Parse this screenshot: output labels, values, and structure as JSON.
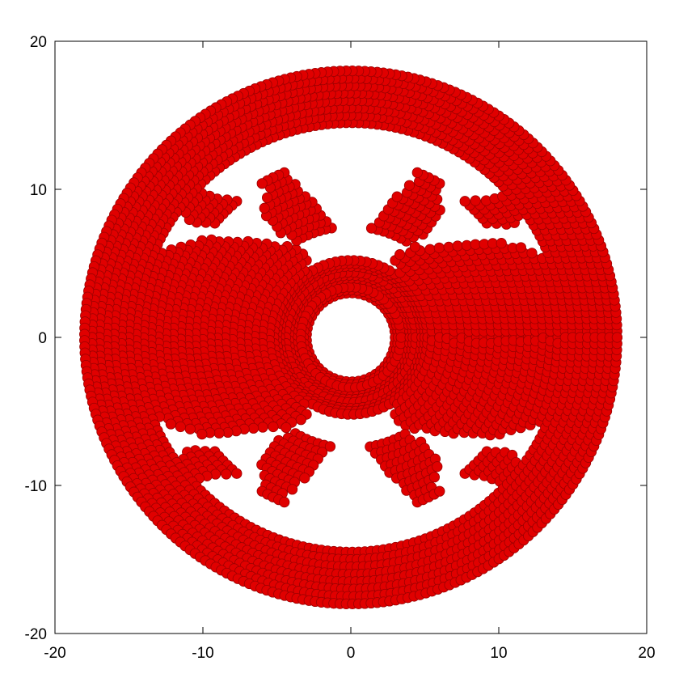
{
  "chart_data": {
    "type": "scatter",
    "title": "",
    "xlabel": "",
    "ylabel": "",
    "xlim": [
      -20,
      20
    ],
    "ylim": [
      -20,
      20
    ],
    "x_ticks": [
      -20,
      -10,
      0,
      10,
      20
    ],
    "y_ticks": [
      -20,
      -10,
      0,
      10,
      20
    ],
    "x_tick_labels": [
      "-20",
      "-10",
      "0",
      "10",
      "20"
    ],
    "y_tick_labels": [
      "-20",
      "-10",
      "0",
      "10",
      "20"
    ],
    "grid": false,
    "legend": "none",
    "marker": "filled circle",
    "marker_color": "#e00000",
    "marker_edge_color": "#9a0000",
    "description_of_pattern": "",
    "series": [
      {
        "rings": [
          {
            "r": 3.0,
            "arcs": [
              [
                0,
                360
              ]
            ]
          },
          {
            "r": 3.2,
            "arcs": [
              [
                0,
                360
              ]
            ]
          },
          {
            "r": 3.4,
            "arcs": [
              [
                0,
                360
              ]
            ]
          },
          {
            "r": 4.0,
            "arcs": [
              [
                0,
                360
              ]
            ]
          },
          {
            "r": 4.2,
            "arcs": [
              [
                0,
                360
              ]
            ]
          },
          {
            "r": 4.4,
            "arcs": [
              [
                0,
                360
              ]
            ]
          },
          {
            "r": 4.8,
            "arcs": [
              [
                0,
                360
              ]
            ]
          },
          {
            "r": 5.0,
            "arcs": [
              [
                0,
                360
              ]
            ]
          },
          {
            "r": 5.2,
            "arcs": [
              [
                0,
                360
              ]
            ]
          },
          {
            "r": 5.5,
            "arcs": [
              [
                0,
                55
              ],
              [
                125,
                235
              ],
              [
                305,
                360
              ]
            ]
          },
          {
            "r": 6.0,
            "arcs": [
              [
                0,
                60
              ],
              [
                120,
                240
              ],
              [
                300,
                360
              ]
            ]
          },
          {
            "r": 6.5,
            "arcs": [
              [
                0,
                60
              ],
              [
                120,
                240
              ],
              [
                300,
                360
              ]
            ]
          },
          {
            "r": 7.0,
            "arcs": [
              [
                0,
                58
              ],
              [
                122,
                238
              ],
              [
                302,
                360
              ]
            ]
          },
          {
            "r": 7.5,
            "arcs": [
              [
                0,
                55
              ],
              [
                60,
                80
              ],
              [
                100,
                120
              ],
              [
                125,
                235
              ],
              [
                240,
                260
              ],
              [
                280,
                300
              ],
              [
                305,
                360
              ]
            ]
          },
          {
            "r": 8.0,
            "arcs": [
              [
                0,
                50
              ],
              [
                58,
                78
              ],
              [
                102,
                122
              ],
              [
                130,
                230
              ],
              [
                238,
                258
              ],
              [
                282,
                302
              ],
              [
                310,
                360
              ]
            ]
          },
          {
            "r": 8.5,
            "arcs": [
              [
                0,
                48
              ],
              [
                55,
                76
              ],
              [
                104,
                125
              ],
              [
                132,
                228
              ],
              [
                235,
                256
              ],
              [
                284,
                305
              ],
              [
                312,
                360
              ]
            ]
          },
          {
            "r": 9.0,
            "arcs": [
              [
                0,
                45
              ],
              [
                55,
                75
              ],
              [
                105,
                125
              ],
              [
                135,
                225
              ],
              [
                235,
                255
              ],
              [
                285,
                305
              ],
              [
                315,
                360
              ]
            ]
          },
          {
            "r": 9.5,
            "arcs": [
              [
                0,
                43
              ],
              [
                55,
                74
              ],
              [
                106,
                125
              ],
              [
                137,
                223
              ],
              [
                235,
                254
              ],
              [
                286,
                305
              ],
              [
                317,
                360
              ]
            ]
          },
          {
            "r": 10.0,
            "arcs": [
              [
                0,
                40
              ],
              [
                55,
                72
              ],
              [
                108,
                125
              ],
              [
                140,
                220
              ],
              [
                235,
                252
              ],
              [
                288,
                305
              ],
              [
                320,
                360
              ]
            ]
          },
          {
            "r": 10.5,
            "arcs": [
              [
                0,
                38
              ],
              [
                55,
                70
              ],
              [
                110,
                125
              ],
              [
                142,
                218
              ],
              [
                235,
                250
              ],
              [
                290,
                305
              ],
              [
                322,
                360
              ]
            ]
          },
          {
            "r": 11.0,
            "arcs": [
              [
                0,
                36
              ],
              [
                58,
                70
              ],
              [
                110,
                122
              ],
              [
                144,
                216
              ],
              [
                238,
                250
              ],
              [
                290,
                302
              ],
              [
                324,
                360
              ]
            ]
          },
          {
            "r": 11.5,
            "arcs": [
              [
                0,
                35
              ],
              [
                60,
                68
              ],
              [
                112,
                120
              ],
              [
                145,
                215
              ],
              [
                240,
                248
              ],
              [
                292,
                300
              ],
              [
                325,
                360
              ]
            ]
          },
          {
            "r": 12.0,
            "arcs": [
              [
                0,
                33
              ],
              [
                40,
                50
              ],
              [
                60,
                68
              ],
              [
                112,
                120
              ],
              [
                130,
                140
              ],
              [
                147,
                213
              ],
              [
                220,
                230
              ],
              [
                240,
                248
              ],
              [
                292,
                300
              ],
              [
                310,
                320
              ],
              [
                327,
                360
              ]
            ]
          },
          {
            "r": 12.5,
            "arcs": [
              [
                0,
                30
              ],
              [
                38,
                48
              ],
              [
                132,
                142
              ],
              [
                150,
                210
              ],
              [
                218,
                228
              ],
              [
                312,
                322
              ],
              [
                330,
                360
              ]
            ]
          },
          {
            "r": 13.0,
            "arcs": [
              [
                0,
                28
              ],
              [
                36,
                46
              ],
              [
                134,
                144
              ],
              [
                152,
                208
              ],
              [
                216,
                226
              ],
              [
                314,
                324
              ],
              [
                332,
                360
              ]
            ]
          },
          {
            "r": 13.5,
            "arcs": [
              [
                0,
                26
              ],
              [
                35,
                45
              ],
              [
                135,
                145
              ],
              [
                154,
                206
              ],
              [
                215,
                225
              ],
              [
                315,
                325
              ],
              [
                334,
                360
              ]
            ]
          },
          {
            "r": 14.0,
            "arcs": [
              [
                0,
                24
              ],
              [
                36,
                44
              ],
              [
                136,
                144
              ],
              [
                156,
                204
              ],
              [
                216,
                224
              ],
              [
                316,
                324
              ],
              [
                336,
                360
              ]
            ]
          },
          {
            "r": 14.5,
            "arcs": [
              [
                0,
                360
              ]
            ]
          },
          {
            "r": 15.0,
            "arcs": [
              [
                0,
                360
              ]
            ]
          },
          {
            "r": 15.5,
            "arcs": [
              [
                0,
                360
              ]
            ]
          },
          {
            "r": 16.0,
            "arcs": [
              [
                0,
                360
              ]
            ]
          },
          {
            "r": 16.5,
            "arcs": [
              [
                0,
                360
              ]
            ]
          },
          {
            "r": 17.0,
            "arcs": [
              [
                0,
                360
              ]
            ]
          },
          {
            "r": 17.5,
            "arcs": [
              [
                0,
                360
              ]
            ]
          },
          {
            "r": 18.0,
            "arcs": [
              [
                0,
                360
              ]
            ]
          }
        ]
      }
    ]
  }
}
